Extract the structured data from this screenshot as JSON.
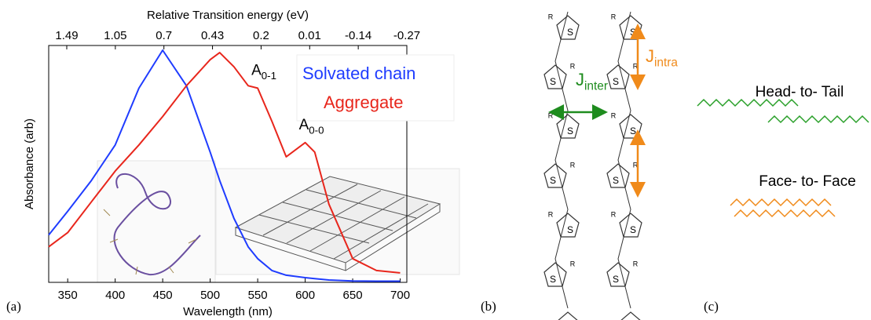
{
  "chart_data": {
    "type": "line",
    "x2label": "Relative Transition energy (eV)",
    "xlabel": "Wavelength (nm)",
    "ylabel": "Absorbance (arb)",
    "x": [
      330,
      350,
      375,
      400,
      425,
      450,
      475,
      500,
      510,
      525,
      540,
      550,
      565,
      580,
      600,
      610,
      625,
      650,
      675,
      700
    ],
    "series": [
      {
        "name": "Solvated chain",
        "color": "#1f3cff",
        "values": [
          0.2,
          0.3,
          0.43,
          0.58,
          0.82,
          0.98,
          0.83,
          0.55,
          0.43,
          0.27,
          0.15,
          0.1,
          0.05,
          0.03,
          0.02,
          0.016,
          0.01,
          0.006,
          0.005,
          0.005
        ]
      },
      {
        "name": "Aggregate",
        "color": "#e8261c",
        "values": [
          0.15,
          0.21,
          0.34,
          0.47,
          0.58,
          0.7,
          0.83,
          0.94,
          0.97,
          0.91,
          0.83,
          0.82,
          0.68,
          0.53,
          0.59,
          0.55,
          0.33,
          0.1,
          0.05,
          0.04
        ]
      }
    ],
    "xlim": [
      330,
      707
    ],
    "ylim": [
      0,
      1
    ],
    "xticks": [
      350,
      400,
      450,
      500,
      550,
      600,
      650,
      700
    ],
    "x2ticks": [
      1.49,
      1.05,
      0.7,
      0.43,
      0.2,
      0.01,
      -0.14,
      -0.27
    ],
    "legend": "upper right",
    "annotations": [
      {
        "text": "A",
        "sub": "0-1",
        "x": 550,
        "y": 0.82
      },
      {
        "text": "A",
        "sub": "0-0",
        "x": 600,
        "y": 0.59
      }
    ]
  },
  "panels": [
    "(a)",
    "(b)",
    "(c)"
  ],
  "diagram": {
    "atoms": {
      "sulfur": "S",
      "substituent": "R"
    },
    "couplings": [
      {
        "symbol": "J",
        "sub": "inter",
        "color": "#1e8c1e"
      },
      {
        "symbol": "J",
        "sub": "intra",
        "color": "#f08a1a"
      }
    ],
    "stackings": [
      {
        "label": "Head- to- Tail",
        "color": "#2aa02a"
      },
      {
        "label": "Face- to- Face",
        "color": "#f08a1a"
      }
    ]
  }
}
